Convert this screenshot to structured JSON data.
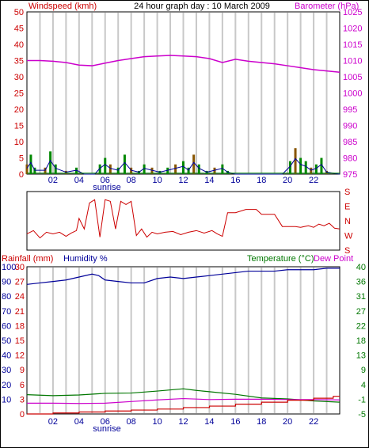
{
  "panels": {
    "wind": {
      "title": "24 hour graph day : 10 March 2009",
      "left_label": "Windspeed (kmh)",
      "right_label": "Barometer (hPa)",
      "left_ticks": [
        "0",
        "5",
        "10",
        "15",
        "20",
        "25",
        "30",
        "35",
        "40",
        "45",
        "50"
      ],
      "right_ticks": [
        "975",
        "980",
        "985",
        "990",
        "995",
        "1000",
        "1005",
        "1010",
        "1015",
        "1020",
        "1025"
      ],
      "x_ticks": [
        "02",
        "04",
        "06",
        "08",
        "10",
        "12",
        "14",
        "16",
        "18",
        "20",
        "22"
      ],
      "sunrise_label": "sunrise"
    },
    "direction": {
      "right_ticks": [
        "S",
        "E",
        "N",
        "W",
        "S"
      ]
    },
    "rain": {
      "left_label": "Rainfall (mm)",
      "humidity_label": "Humidity %",
      "temp_label": "Temperature (°C)",
      "dew_label": "Dew Point",
      "rain_ticks": [
        "0",
        "3",
        "6",
        "9",
        "12",
        "15",
        "18",
        "21",
        "24",
        "27",
        "30"
      ],
      "humidity_ticks": [
        "10",
        "20",
        "30",
        "40",
        "50",
        "60",
        "70",
        "80",
        "90",
        "100"
      ],
      "temp_ticks": [
        "-5",
        "-1",
        "4",
        "9",
        "13",
        "18",
        "22",
        "27",
        "31",
        "36",
        "40"
      ],
      "x_ticks": [
        "02",
        "04",
        "06",
        "08",
        "10",
        "12",
        "14",
        "16",
        "18",
        "20",
        "22"
      ],
      "sunrise_label": "sunrise"
    }
  },
  "colors": {
    "wind_axis": "#cc0000",
    "baro": "#cc00cc",
    "wind_avg": "#000099",
    "wind_gust": "#008800",
    "wind_bar": "#885500",
    "direction": "#cc0000",
    "humidity": "#000099",
    "temperature": "#007700",
    "dew": "#cc00cc",
    "rain": "#cc0000",
    "grid": "#c8c8c8"
  },
  "chart_data": [
    {
      "type": "line",
      "series": [
        {
          "name": "Barometer (hPa)",
          "x": [
            0,
            1,
            2,
            3,
            4,
            5,
            6,
            7,
            8,
            9,
            10,
            11,
            12,
            13,
            14,
            15,
            16,
            17,
            18,
            19,
            20,
            21,
            22,
            23,
            24
          ],
          "values": [
            1010,
            1010,
            1009.8,
            1009.4,
            1008.6,
            1008.4,
            1009.2,
            1010,
            1010.6,
            1011.2,
            1011.4,
            1011.6,
            1011.4,
            1011.2,
            1010.6,
            1009.4,
            1010.4,
            1009.8,
            1009.4,
            1009,
            1008.4,
            1007.8,
            1007.2,
            1006.8,
            1006.4
          ]
        },
        {
          "name": "Windspeed (kmh)",
          "x": [
            0,
            0.3,
            0.6,
            1.4,
            1.8,
            2.2,
            3,
            3.8,
            4.4,
            5.2,
            5.6,
            6,
            6.4,
            7,
            7.5,
            8,
            8.6,
            9,
            9.6,
            10.2,
            10.8,
            11.4,
            12,
            12.4,
            12.8,
            13.2,
            13.8,
            14.4,
            15,
            15.4,
            16,
            17,
            18,
            19,
            19.6,
            20.2,
            20.6,
            21,
            21.4,
            21.8,
            22.2,
            22.6,
            23,
            24
          ],
          "values": [
            3,
            6,
            2,
            2,
            7,
            3,
            1,
            2,
            0,
            0,
            3,
            5,
            3,
            2,
            6,
            2,
            1,
            3,
            2,
            1,
            2,
            3,
            4,
            2,
            6,
            3,
            1,
            2,
            3,
            1,
            0,
            0,
            0,
            0,
            0,
            4,
            8,
            5,
            4,
            2,
            3,
            5,
            1,
            0
          ]
        }
      ],
      "xlim": [
        0,
        24
      ],
      "ylim_left": [
        0,
        50
      ],
      "ylim_right": [
        975,
        1025
      ],
      "xticks": [
        "02",
        "04",
        "06",
        "08",
        "10",
        "12",
        "14",
        "16",
        "18",
        "20",
        "22"
      ]
    },
    {
      "type": "line",
      "series": [
        {
          "name": "",
          "x": [
            0,
            0.5,
            1,
            1.5,
            2,
            2.5,
            3,
            3.4,
            3.8,
            4,
            4.4,
            4.8,
            5.2,
            5.6,
            6,
            6.4,
            6.8,
            7.2,
            7.6,
            8,
            8.4,
            8.8,
            9.2,
            9.6,
            10,
            10.6,
            11.2,
            11.8,
            12.4,
            13,
            13.6,
            14.2,
            14.6,
            15,
            15.4,
            16,
            16.8,
            17.6,
            18,
            19,
            19.6,
            20,
            20.6,
            21,
            21.6,
            22,
            22.4,
            22.8,
            23.2,
            23.6,
            24
          ],
          "values": [
            260,
            240,
            285,
            250,
            260,
            250,
            275,
            255,
            240,
            165,
            230,
            70,
            50,
            280,
            50,
            60,
            230,
            60,
            80,
            60,
            270,
            230,
            280,
            250,
            260,
            250,
            245,
            265,
            250,
            240,
            255,
            240,
            260,
            275,
            130,
            130,
            110,
            110,
            140,
            140,
            215,
            215,
            215,
            220,
            210,
            220,
            200,
            210,
            195,
            225,
            230
          ]
        }
      ],
      "xlim": [
        0,
        24
      ],
      "ylim": [
        360,
        0
      ],
      "ytick_labels": [
        "S",
        "E",
        "N",
        "W",
        "S"
      ]
    },
    {
      "type": "line",
      "series": [
        {
          "name": "Humidity %",
          "x": [
            0,
            1,
            2,
            3,
            4,
            5,
            5.5,
            6,
            7,
            8,
            9,
            10,
            11,
            12,
            13,
            14,
            15,
            16,
            17,
            18,
            19,
            20,
            21,
            22,
            23,
            24
          ],
          "values": [
            88,
            89,
            90,
            91,
            93,
            95,
            94,
            91,
            90,
            89,
            89,
            92,
            93,
            92,
            93,
            94,
            95,
            96,
            97,
            97,
            97,
            98,
            98,
            98,
            99,
            99
          ]
        },
        {
          "name": "Temperature (°C)",
          "x": [
            0,
            2,
            4,
            6,
            8,
            10,
            12,
            13,
            14,
            16,
            18,
            20,
            22,
            24
          ],
          "values": [
            0.9,
            0.6,
            0.8,
            1.3,
            1.4,
            2.0,
            2.7,
            2.2,
            1.8,
            1.0,
            -0.1,
            -0.4,
            -1.0,
            -1.4
          ]
        },
        {
          "name": "Dew Point",
          "x": [
            0,
            2,
            4,
            6,
            8,
            10,
            12,
            14,
            16,
            18,
            20,
            22,
            24
          ],
          "values": [
            -1.7,
            -1.7,
            -1.8,
            -1.7,
            -1.2,
            -0.7,
            -0.3,
            -0.6,
            -0.5,
            -0.5,
            -0.6,
            -0.6,
            -0.7
          ]
        },
        {
          "name": "Rainfall (mm)",
          "x": [
            0,
            2,
            2.01,
            4,
            4.01,
            6,
            6.01,
            8,
            8.01,
            10,
            10.01,
            12,
            12.01,
            14,
            14.01,
            16,
            16.01,
            18,
            18.01,
            20,
            20.01,
            22,
            22.01,
            23.5,
            23.51,
            24
          ],
          "values": [
            0,
            0,
            0.2,
            0.2,
            0.4,
            0.4,
            0.6,
            0.6,
            0.8,
            0.8,
            1.0,
            1.0,
            1.3,
            1.3,
            1.6,
            1.6,
            2.0,
            2.0,
            2.4,
            2.4,
            2.8,
            2.8,
            3.2,
            3.2,
            3.6,
            3.6
          ]
        }
      ],
      "xlim": [
        0,
        24
      ],
      "ylim_humidity": [
        0,
        100
      ],
      "ylim_rain": [
        0,
        30
      ],
      "ylim_temp": [
        -5,
        40
      ],
      "xticks": [
        "02",
        "04",
        "06",
        "08",
        "10",
        "12",
        "14",
        "16",
        "18",
        "20",
        "22"
      ]
    }
  ]
}
